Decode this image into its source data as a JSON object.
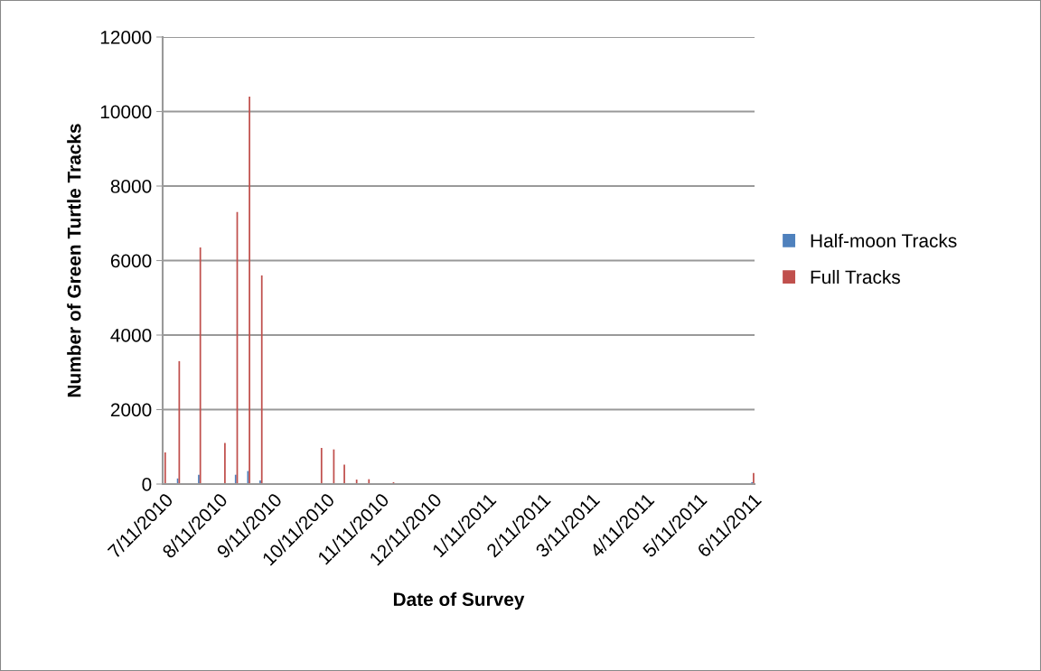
{
  "chart_data": {
    "type": "bar",
    "xlabel": "Date of Survey",
    "ylabel": "Number of Green Turtle Tracks",
    "x": [
      "2010-07-11",
      "2010-07-19",
      "2010-07-31",
      "2010-08-14",
      "2010-08-21",
      "2010-08-28",
      "2010-09-04",
      "2010-10-08",
      "2010-10-15",
      "2010-10-21",
      "2010-10-28",
      "2010-11-04",
      "2010-11-18",
      "2011-06-11"
    ],
    "series": [
      {
        "name": "Half-moon Tracks",
        "color": "#4f81bd",
        "values": [
          0,
          150,
          250,
          0,
          250,
          350,
          100,
          0,
          0,
          0,
          0,
          0,
          0,
          50
        ]
      },
      {
        "name": "Full Tracks",
        "color": "#c0504d",
        "values": [
          850,
          3300,
          6350,
          1100,
          7300,
          10400,
          5600,
          970,
          930,
          520,
          120,
          130,
          50,
          300
        ]
      }
    ],
    "xlim": [
      "2010-07-10",
      "2011-06-12"
    ],
    "xticks": [
      {
        "value": "2010-07-11",
        "label": "7/11/2010"
      },
      {
        "value": "2010-08-11",
        "label": "8/11/2010"
      },
      {
        "value": "2010-09-11",
        "label": "9/11/2010"
      },
      {
        "value": "2010-10-11",
        "label": "10/11/2010"
      },
      {
        "value": "2010-11-11",
        "label": "11/11/2010"
      },
      {
        "value": "2010-12-11",
        "label": "12/11/2010"
      },
      {
        "value": "2011-01-11",
        "label": "1/11/2011"
      },
      {
        "value": "2011-02-11",
        "label": "2/11/2011"
      },
      {
        "value": "2011-03-11",
        "label": "3/11/2011"
      },
      {
        "value": "2011-04-11",
        "label": "4/11/2011"
      },
      {
        "value": "2011-05-11",
        "label": "5/11/2011"
      },
      {
        "value": "2011-06-11",
        "label": "6/11/2011"
      }
    ],
    "ylim": [
      0,
      12000
    ],
    "yticks": [
      0,
      2000,
      4000,
      6000,
      8000,
      10000,
      12000
    ],
    "grid": "y",
    "legend": "right"
  }
}
